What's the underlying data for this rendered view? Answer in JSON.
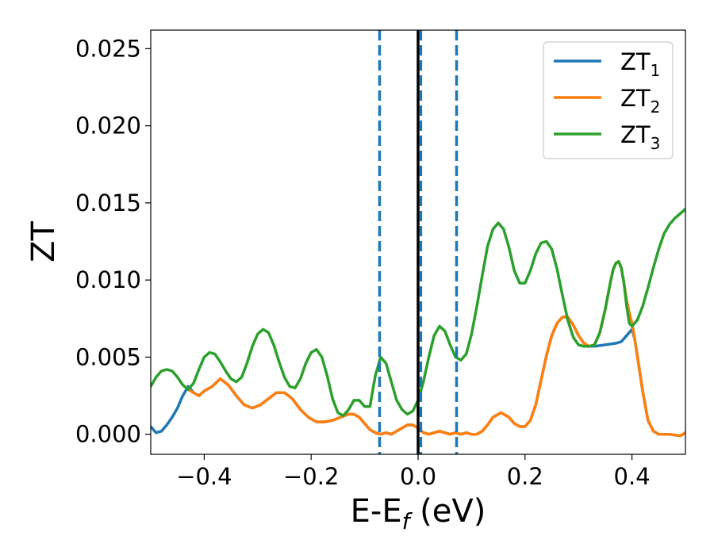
{
  "chart_data": {
    "type": "line",
    "title": "",
    "xlabel": {
      "base": "E-E",
      "subscript": "f",
      "suffix": " (eV)"
    },
    "ylabel": "ZT",
    "xlim": [
      -0.5,
      0.5
    ],
    "ylim": [
      -0.0013,
      0.0262
    ],
    "x_ticks": [
      -0.4,
      -0.2,
      0.0,
      0.2,
      0.4
    ],
    "x_tick_labels": [
      "−0.4",
      "−0.2",
      "0.0",
      "0.2",
      "0.4"
    ],
    "y_ticks": [
      0.0,
      0.005,
      0.01,
      0.015,
      0.02,
      0.025
    ],
    "y_tick_labels": [
      "0.000",
      "0.005",
      "0.010",
      "0.015",
      "0.020",
      "0.025"
    ],
    "grid": false,
    "legend_position": "top-right",
    "vlines": [
      {
        "x": 0.0,
        "style": "solid",
        "color": "#000000"
      },
      {
        "x": -0.072,
        "style": "dashed",
        "color": "#1f77b4"
      },
      {
        "x": 0.005,
        "style": "dashed",
        "color": "#1f77b4"
      },
      {
        "x": 0.072,
        "style": "dashed",
        "color": "#1f77b4"
      }
    ],
    "series": [
      {
        "name": "ZT",
        "subscript": "1",
        "color": "#1f77b4",
        "points": [
          [
            -0.5,
            0.0005
          ],
          [
            -0.49,
            0.0001
          ],
          [
            -0.48,
            0.0002
          ],
          [
            -0.47,
            0.0006
          ],
          [
            -0.46,
            0.0011
          ],
          [
            -0.45,
            0.0017
          ],
          [
            -0.44,
            0.0025
          ],
          [
            -0.43,
            0.0031
          ],
          [
            -0.42,
            0.0027
          ],
          [
            -0.41,
            0.0025
          ],
          [
            -0.4,
            0.0028
          ],
          [
            -0.385,
            0.0031
          ],
          [
            -0.37,
            0.0036
          ],
          [
            -0.355,
            0.0032
          ],
          [
            -0.34,
            0.0025
          ],
          [
            -0.325,
            0.0019
          ],
          [
            -0.31,
            0.0017
          ],
          [
            -0.295,
            0.0019
          ],
          [
            -0.28,
            0.0023
          ],
          [
            -0.265,
            0.0027
          ],
          [
            -0.25,
            0.0027
          ],
          [
            -0.235,
            0.0023
          ],
          [
            -0.22,
            0.0016
          ],
          [
            -0.205,
            0.0011
          ],
          [
            -0.19,
            0.0008
          ],
          [
            -0.175,
            0.0008
          ],
          [
            -0.16,
            0.0009
          ],
          [
            -0.145,
            0.0011
          ],
          [
            -0.13,
            0.0013
          ],
          [
            -0.12,
            0.0013
          ],
          [
            -0.11,
            0.0011
          ],
          [
            -0.1,
            0.0007
          ],
          [
            -0.09,
            0.0003
          ],
          [
            -0.08,
            0.0001
          ],
          [
            -0.07,
            0.0
          ],
          [
            -0.06,
            0.0001
          ],
          [
            -0.05,
            0.0
          ],
          [
            -0.04,
            0.0002
          ],
          [
            -0.03,
            0.0004
          ],
          [
            -0.02,
            0.0006
          ],
          [
            -0.01,
            0.0006
          ],
          [
            0.0,
            0.0004
          ],
          [
            0.01,
            0.0001
          ],
          [
            0.02,
            0.0
          ],
          [
            0.03,
            0.0001
          ],
          [
            0.04,
            0.0002
          ],
          [
            0.05,
            0.0001
          ],
          [
            0.06,
            0.0
          ],
          [
            0.07,
            0.0001
          ],
          [
            0.08,
            0.0
          ],
          [
            0.09,
            0.0001
          ],
          [
            0.1,
            0.0
          ],
          [
            0.11,
            0.0
          ],
          [
            0.12,
            0.0002
          ],
          [
            0.13,
            0.0006
          ],
          [
            0.14,
            0.0011
          ],
          [
            0.155,
            0.0014
          ],
          [
            0.17,
            0.0011
          ],
          [
            0.18,
            0.0007
          ],
          [
            0.19,
            0.0005
          ],
          [
            0.2,
            0.0005
          ],
          [
            0.21,
            0.0009
          ],
          [
            0.22,
            0.0019
          ],
          [
            0.23,
            0.0035
          ],
          [
            0.24,
            0.0051
          ],
          [
            0.25,
            0.0064
          ],
          [
            0.26,
            0.0072
          ],
          [
            0.27,
            0.0076
          ],
          [
            0.28,
            0.0076
          ],
          [
            0.29,
            0.0071
          ],
          [
            0.3,
            0.0064
          ],
          [
            0.31,
            0.0059
          ],
          [
            0.32,
            0.0057
          ],
          [
            0.33,
            0.0057
          ],
          [
            0.35,
            0.0058
          ],
          [
            0.37,
            0.0059
          ],
          [
            0.38,
            0.006
          ],
          [
            0.39,
            0.0064
          ],
          [
            0.4,
            0.0068
          ],
          [
            0.405,
            0.0062
          ],
          [
            0.41,
            0.0051
          ],
          [
            0.42,
            0.0028
          ],
          [
            0.43,
            0.0009
          ],
          [
            0.44,
            0.0002
          ],
          [
            0.45,
            0.0
          ],
          [
            0.47,
            0.0
          ],
          [
            0.49,
            -0.0001
          ],
          [
            0.5,
            0.0001
          ]
        ]
      },
      {
        "name": "ZT",
        "subscript": "2",
        "color": "#ff7f0e",
        "points": [
          [
            -0.43,
            0.0029
          ],
          [
            -0.42,
            0.0027
          ],
          [
            -0.41,
            0.0025
          ],
          [
            -0.4,
            0.0028
          ],
          [
            -0.385,
            0.0031
          ],
          [
            -0.37,
            0.0036
          ],
          [
            -0.355,
            0.0032
          ],
          [
            -0.34,
            0.0025
          ],
          [
            -0.325,
            0.0019
          ],
          [
            -0.31,
            0.0017
          ],
          [
            -0.295,
            0.0019
          ],
          [
            -0.28,
            0.0023
          ],
          [
            -0.265,
            0.0027
          ],
          [
            -0.25,
            0.0027
          ],
          [
            -0.235,
            0.0023
          ],
          [
            -0.22,
            0.0016
          ],
          [
            -0.205,
            0.0011
          ],
          [
            -0.19,
            0.0008
          ],
          [
            -0.175,
            0.0008
          ],
          [
            -0.16,
            0.0009
          ],
          [
            -0.145,
            0.0011
          ],
          [
            -0.13,
            0.0013
          ],
          [
            -0.12,
            0.0013
          ],
          [
            -0.11,
            0.0011
          ],
          [
            -0.1,
            0.0007
          ],
          [
            -0.09,
            0.0003
          ],
          [
            -0.08,
            0.0001
          ],
          [
            -0.07,
            0.0
          ],
          [
            -0.06,
            0.0001
          ],
          [
            -0.05,
            0.0
          ],
          [
            -0.04,
            0.0002
          ],
          [
            -0.03,
            0.0004
          ],
          [
            -0.02,
            0.0006
          ],
          [
            -0.01,
            0.0006
          ],
          [
            0.0,
            0.0004
          ],
          [
            0.01,
            0.0001
          ],
          [
            0.02,
            0.0
          ],
          [
            0.03,
            0.0001
          ],
          [
            0.04,
            0.0002
          ],
          [
            0.05,
            0.0001
          ],
          [
            0.06,
            0.0
          ],
          [
            0.07,
            0.0001
          ],
          [
            0.08,
            0.0
          ],
          [
            0.09,
            0.0001
          ],
          [
            0.1,
            0.0
          ],
          [
            0.11,
            0.0
          ],
          [
            0.12,
            0.0002
          ],
          [
            0.13,
            0.0006
          ],
          [
            0.14,
            0.0011
          ],
          [
            0.155,
            0.0014
          ],
          [
            0.17,
            0.0011
          ],
          [
            0.18,
            0.0007
          ],
          [
            0.19,
            0.0005
          ],
          [
            0.2,
            0.0005
          ],
          [
            0.21,
            0.0009
          ],
          [
            0.22,
            0.0019
          ],
          [
            0.23,
            0.0035
          ],
          [
            0.24,
            0.0051
          ],
          [
            0.25,
            0.0064
          ],
          [
            0.26,
            0.0072
          ],
          [
            0.27,
            0.0076
          ],
          [
            0.28,
            0.0076
          ],
          [
            0.29,
            0.0071
          ],
          [
            0.3,
            0.0064
          ],
          [
            0.31,
            0.0059
          ],
          [
            0.32,
            0.0057
          ],
          [
            0.33,
            0.0058
          ],
          [
            0.34,
            0.0066
          ],
          [
            0.35,
            0.0081
          ],
          [
            0.36,
            0.0099
          ],
          [
            0.365,
            0.0107
          ],
          [
            0.37,
            0.0111
          ],
          [
            0.375,
            0.0112
          ],
          [
            0.38,
            0.0108
          ],
          [
            0.385,
            0.0098
          ],
          [
            0.39,
            0.0087
          ],
          [
            0.395,
            0.0079
          ],
          [
            0.4,
            0.0072
          ],
          [
            0.405,
            0.0062
          ],
          [
            0.41,
            0.0051
          ],
          [
            0.42,
            0.0028
          ],
          [
            0.43,
            0.0009
          ],
          [
            0.44,
            0.0002
          ],
          [
            0.45,
            0.0
          ],
          [
            0.47,
            0.0
          ],
          [
            0.49,
            -0.0001
          ],
          [
            0.5,
            0.0001
          ]
        ]
      },
      {
        "name": "ZT",
        "subscript": "3",
        "color": "#2ca02c",
        "points": [
          [
            -0.5,
            0.0031
          ],
          [
            -0.49,
            0.0037
          ],
          [
            -0.48,
            0.0041
          ],
          [
            -0.47,
            0.0042
          ],
          [
            -0.46,
            0.0041
          ],
          [
            -0.45,
            0.0037
          ],
          [
            -0.44,
            0.0032
          ],
          [
            -0.43,
            0.0029
          ],
          [
            -0.42,
            0.0033
          ],
          [
            -0.41,
            0.0042
          ],
          [
            -0.4,
            0.005
          ],
          [
            -0.39,
            0.0053
          ],
          [
            -0.38,
            0.0052
          ],
          [
            -0.37,
            0.0047
          ],
          [
            -0.36,
            0.0041
          ],
          [
            -0.35,
            0.0036
          ],
          [
            -0.34,
            0.0034
          ],
          [
            -0.33,
            0.0037
          ],
          [
            -0.32,
            0.0046
          ],
          [
            -0.31,
            0.0057
          ],
          [
            -0.3,
            0.0065
          ],
          [
            -0.29,
            0.0068
          ],
          [
            -0.28,
            0.0066
          ],
          [
            -0.27,
            0.0058
          ],
          [
            -0.26,
            0.0047
          ],
          [
            -0.25,
            0.0037
          ],
          [
            -0.24,
            0.0031
          ],
          [
            -0.23,
            0.003
          ],
          [
            -0.22,
            0.0036
          ],
          [
            -0.21,
            0.0046
          ],
          [
            -0.2,
            0.0053
          ],
          [
            -0.19,
            0.0055
          ],
          [
            -0.18,
            0.005
          ],
          [
            -0.17,
            0.0038
          ],
          [
            -0.16,
            0.0023
          ],
          [
            -0.15,
            0.0014
          ],
          [
            -0.14,
            0.0012
          ],
          [
            -0.13,
            0.0016
          ],
          [
            -0.12,
            0.0022
          ],
          [
            -0.11,
            0.0022
          ],
          [
            -0.1,
            0.0018
          ],
          [
            -0.09,
            0.0018
          ],
          [
            -0.08,
            0.0038
          ],
          [
            -0.07,
            0.005
          ],
          [
            -0.06,
            0.0046
          ],
          [
            -0.05,
            0.0034
          ],
          [
            -0.04,
            0.0022
          ],
          [
            -0.03,
            0.0016
          ],
          [
            -0.02,
            0.0013
          ],
          [
            -0.01,
            0.0015
          ],
          [
            0.0,
            0.0022
          ],
          [
            0.01,
            0.0034
          ],
          [
            0.02,
            0.005
          ],
          [
            0.03,
            0.0064
          ],
          [
            0.04,
            0.007
          ],
          [
            0.05,
            0.0067
          ],
          [
            0.06,
            0.0058
          ],
          [
            0.07,
            0.005
          ],
          [
            0.08,
            0.0048
          ],
          [
            0.09,
            0.0052
          ],
          [
            0.1,
            0.0065
          ],
          [
            0.11,
            0.0083
          ],
          [
            0.12,
            0.0103
          ],
          [
            0.13,
            0.0122
          ],
          [
            0.14,
            0.0133
          ],
          [
            0.15,
            0.0137
          ],
          [
            0.16,
            0.0133
          ],
          [
            0.17,
            0.0121
          ],
          [
            0.18,
            0.0106
          ],
          [
            0.19,
            0.0098
          ],
          [
            0.2,
            0.0098
          ],
          [
            0.21,
            0.0106
          ],
          [
            0.22,
            0.0117
          ],
          [
            0.23,
            0.0124
          ],
          [
            0.24,
            0.0125
          ],
          [
            0.25,
            0.012
          ],
          [
            0.26,
            0.0107
          ],
          [
            0.27,
            0.009
          ],
          [
            0.28,
            0.0074
          ],
          [
            0.29,
            0.0063
          ],
          [
            0.3,
            0.0058
          ],
          [
            0.31,
            0.0057
          ],
          [
            0.32,
            0.0057
          ],
          [
            0.33,
            0.0058
          ],
          [
            0.34,
            0.0066
          ],
          [
            0.35,
            0.0081
          ],
          [
            0.36,
            0.0099
          ],
          [
            0.365,
            0.0107
          ],
          [
            0.37,
            0.0111
          ],
          [
            0.375,
            0.0112
          ],
          [
            0.38,
            0.0108
          ],
          [
            0.385,
            0.0098
          ],
          [
            0.39,
            0.0083
          ],
          [
            0.395,
            0.0072
          ],
          [
            0.4,
            0.007
          ],
          [
            0.41,
            0.0074
          ],
          [
            0.42,
            0.0083
          ],
          [
            0.43,
            0.0095
          ],
          [
            0.44,
            0.0108
          ],
          [
            0.45,
            0.012
          ],
          [
            0.46,
            0.013
          ],
          [
            0.47,
            0.0136
          ],
          [
            0.48,
            0.014
          ],
          [
            0.49,
            0.0143
          ],
          [
            0.5,
            0.0146
          ]
        ]
      }
    ]
  }
}
